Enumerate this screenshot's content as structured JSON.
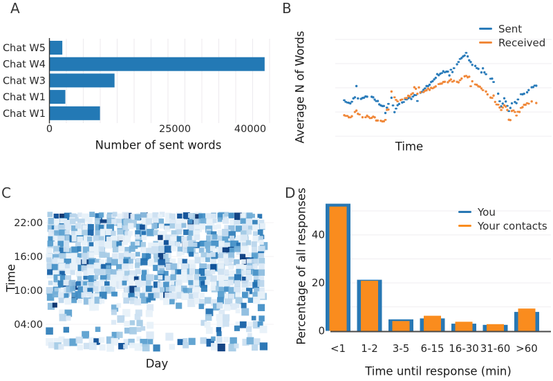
{
  "figure": {
    "background": "#ffffff",
    "description": "Four-panel messaging statistics figure"
  },
  "chart_data": [
    {
      "panel": "A",
      "type": "bar",
      "orientation": "horizontal",
      "title": "",
      "categories": [
        "Chat W5",
        "Chat W4",
        "Chat W3",
        "Chat W1",
        "Chat W1"
      ],
      "values": [
        2500,
        42800,
        12900,
        3100,
        10000
      ],
      "xlabel": "Number of sent words",
      "ylabel": "",
      "x_ticks": [
        0,
        25000,
        40000
      ],
      "xlim": [
        0,
        44500
      ],
      "bar_color": "#2379b5",
      "grid": "vertical-light"
    },
    {
      "panel": "B",
      "type": "scatter",
      "title": "",
      "xlabel": "Time",
      "ylabel": "Average N of Words",
      "x_tick_labels": "none",
      "y_tick_labels": "none",
      "grid": "horizontal-light",
      "legend_position": "upper-right",
      "note": "point y values are fractions of plot height (axes unlabeled in source figure)",
      "series": [
        {
          "name": "Sent",
          "color": "#2b7cba",
          "seed": 3,
          "points": [
            [
              0,
              0.36
            ],
            [
              0.03,
              0.34
            ],
            [
              0.06,
              0.42
            ],
            [
              0.08,
              0.38
            ],
            [
              0.11,
              0.41
            ],
            [
              0.14,
              0.42
            ],
            [
              0.17,
              0.36
            ],
            [
              0.2,
              0.31
            ],
            [
              0.22,
              0.28
            ],
            [
              0.24,
              0.44
            ],
            [
              0.26,
              0.25
            ],
            [
              0.28,
              0.33
            ],
            [
              0.31,
              0.37
            ],
            [
              0.34,
              0.39
            ],
            [
              0.38,
              0.43
            ],
            [
              0.42,
              0.5
            ],
            [
              0.45,
              0.56
            ],
            [
              0.48,
              0.63
            ],
            [
              0.5,
              0.66
            ],
            [
              0.53,
              0.67
            ],
            [
              0.55,
              0.62
            ],
            [
              0.57,
              0.72
            ],
            [
              0.6,
              0.79
            ],
            [
              0.63,
              0.86
            ],
            [
              0.65,
              0.76
            ],
            [
              0.67,
              0.73
            ],
            [
              0.7,
              0.68
            ],
            [
              0.73,
              0.64
            ],
            [
              0.76,
              0.6
            ],
            [
              0.79,
              0.5
            ],
            [
              0.81,
              0.3
            ],
            [
              0.83,
              0.4
            ],
            [
              0.85,
              0.26
            ],
            [
              0.87,
              0.35
            ],
            [
              0.89,
              0.34
            ],
            [
              0.91,
              0.42
            ],
            [
              0.94,
              0.45
            ],
            [
              0.97,
              0.51
            ],
            [
              1,
              0.53
            ]
          ]
        },
        {
          "name": "Received",
          "color": "#f0883a",
          "seed": 8,
          "points": [
            [
              0,
              0.22
            ],
            [
              0.03,
              0.18
            ],
            [
              0.06,
              0.26
            ],
            [
              0.09,
              0.21
            ],
            [
              0.12,
              0.2
            ],
            [
              0.15,
              0.19
            ],
            [
              0.18,
              0.16
            ],
            [
              0.21,
              0.15
            ],
            [
              0.24,
              0.47
            ],
            [
              0.26,
              0.4
            ],
            [
              0.28,
              0.34
            ],
            [
              0.3,
              0.38
            ],
            [
              0.33,
              0.41
            ],
            [
              0.36,
              0.44
            ],
            [
              0.4,
              0.46
            ],
            [
              0.44,
              0.49
            ],
            [
              0.47,
              0.51
            ],
            [
              0.5,
              0.54
            ],
            [
              0.53,
              0.56
            ],
            [
              0.55,
              0.58
            ],
            [
              0.58,
              0.55
            ],
            [
              0.61,
              0.6
            ],
            [
              0.63,
              0.63
            ],
            [
              0.66,
              0.58
            ],
            [
              0.68,
              0.54
            ],
            [
              0.71,
              0.49
            ],
            [
              0.74,
              0.44
            ],
            [
              0.77,
              0.38
            ],
            [
              0.79,
              0.33
            ],
            [
              0.81,
              0.28
            ],
            [
              0.83,
              0.32
            ],
            [
              0.85,
              0.24
            ],
            [
              0.87,
              0.28
            ],
            [
              0.89,
              0.22
            ],
            [
              0.92,
              0.3
            ],
            [
              0.95,
              0.34
            ],
            [
              0.97,
              0.37
            ],
            [
              1,
              0.33
            ]
          ]
        }
      ]
    },
    {
      "panel": "C",
      "type": "heatmap",
      "title": "",
      "xlabel": "Day",
      "ylabel": "Time",
      "y_ticks": [
        "22:00",
        "16:00",
        "10:00",
        "04:00"
      ],
      "x_tick_labels": "none",
      "colormap": "Blues",
      "palette": [
        "#e8f1f9",
        "#dbe9f5",
        "#cce0f1",
        "#bad6ec",
        "#a5cbe6",
        "#8dbddf",
        "#74afd8",
        "#5ba0d0",
        "#4590c7",
        "#327fba",
        "#2271b2",
        "#1660a7",
        "#0c4d96",
        "#083b7e",
        "#08306b"
      ],
      "rows": 24,
      "cols": 37,
      "seed": 5,
      "islands": [
        [
          0.09,
          0.29
        ],
        [
          0.5,
          0.7
        ]
      ],
      "pattern": "dense activity 09:00-24:00 and around midnight; sparse 02:30-08:00 with two multi-day empty gaps"
    },
    {
      "panel": "D",
      "type": "bar",
      "title": "",
      "categories": [
        "<1",
        "1-2",
        "3-5",
        "6-15",
        "16-30",
        "31-60",
        ">60"
      ],
      "series": [
        {
          "name": "You",
          "color": "#2878b4",
          "values": [
            53,
            21.3,
            4.8,
            5.2,
            3.0,
            2.5,
            7.9
          ]
        },
        {
          "name": "Your contacts",
          "color": "#fa8c1e",
          "values": [
            51.8,
            20.9,
            4.1,
            6.3,
            3.8,
            2.8,
            9.3
          ]
        }
      ],
      "xlabel": "Time until response (min)",
      "ylabel": "Percentage of all responses",
      "y_ticks": [
        0,
        20,
        40
      ],
      "ylim": [
        0,
        56
      ],
      "grid": "horizontal-light",
      "legend_position": "upper-right"
    }
  ]
}
